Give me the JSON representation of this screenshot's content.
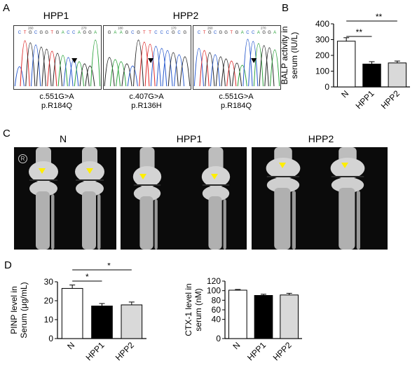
{
  "panels": {
    "a": "A",
    "b": "B",
    "c": "C",
    "d": "D"
  },
  "panel_a": {
    "titles": [
      "HPP1",
      "HPP2"
    ],
    "traces": [
      {
        "seq": "CTGCGGTGACCAGGA",
        "pos": [
          "260",
          "270"
        ],
        "caption": [
          "c.551G>A",
          "p.R184Q"
        ]
      },
      {
        "seq": "GAAGCGTTCCCGCG",
        "pos": [
          "180",
          "170"
        ],
        "caption": [
          "c.407G>A",
          "p.R136H"
        ]
      },
      {
        "seq": "CTGCGGTGACCAGGA",
        "pos": [
          "260",
          "270"
        ],
        "caption": [
          "c.551G>A",
          "p.R184Q"
        ]
      }
    ],
    "base_colors": {
      "A": "#2aa33a",
      "C": "#2255cc",
      "G": "#222222",
      "T": "#dd2222"
    }
  },
  "panel_c": {
    "titles": [
      "N",
      "HPP1",
      "HPP2"
    ],
    "marker": "R",
    "arrow_color": "#ffee00"
  },
  "chart_data": [
    {
      "type": "bar",
      "ylabel": "BALP activity in serum (IU/L)",
      "categories": [
        "N",
        "HPP1",
        "HPP2"
      ],
      "values": [
        290,
        145,
        152
      ],
      "errors": [
        22,
        15,
        12
      ],
      "ylim": [
        0,
        400
      ],
      "yticks": [
        "0",
        "100",
        "200",
        "300",
        "400"
      ],
      "colors": [
        "#ffffff",
        "#000000",
        "#d9d9d9"
      ],
      "significance": [
        {
          "from": 0,
          "to": 1,
          "label": "**"
        },
        {
          "from": 0,
          "to": 2,
          "label": "**"
        }
      ]
    },
    {
      "type": "bar",
      "ylabel": "PINP level in Serum (μg/mL)",
      "categories": [
        "N",
        "HPP1",
        "HPP2"
      ],
      "values": [
        26.5,
        17.2,
        17.8
      ],
      "errors": [
        1.8,
        1.3,
        1.5
      ],
      "ylim": [
        0,
        30
      ],
      "yticks": [
        "0",
        "10",
        "20",
        "30"
      ],
      "colors": [
        "#ffffff",
        "#000000",
        "#d9d9d9"
      ],
      "significance": [
        {
          "from": 0,
          "to": 1,
          "label": "*"
        },
        {
          "from": 0,
          "to": 2,
          "label": "*"
        }
      ]
    },
    {
      "type": "bar",
      "ylabel": "CTX-1 level in serum (nM)",
      "categories": [
        "N",
        "HPP1",
        "HPP2"
      ],
      "values": [
        101,
        90,
        91
      ],
      "errors": [
        1.5,
        2.5,
        3.5
      ],
      "ylim": [
        0,
        120
      ],
      "yticks": [
        "0",
        "40",
        "60",
        "80",
        "100",
        "120"
      ],
      "tick_values": [
        0,
        40,
        60,
        80,
        100,
        120
      ],
      "colors": [
        "#ffffff",
        "#000000",
        "#d9d9d9"
      ],
      "significance": []
    }
  ]
}
